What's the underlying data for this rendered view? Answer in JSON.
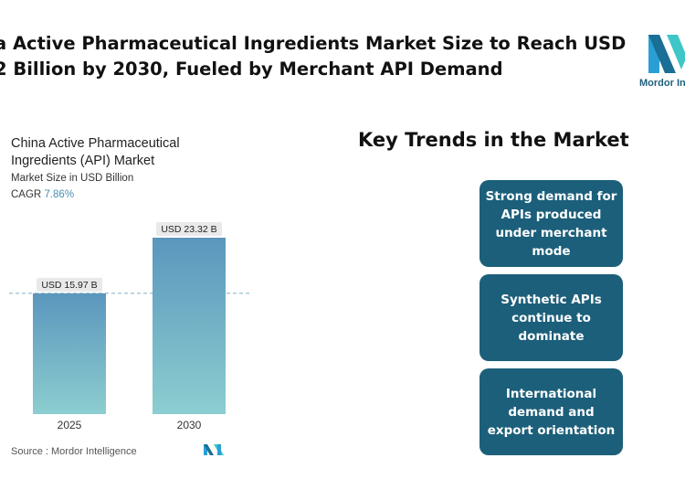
{
  "headline": {
    "line1": "a Active Pharmaceutical Ingredients Market Size to Reach USD",
    "line2": "2 Billion by 2030, Fueled by Merchant API Demand"
  },
  "logo": {
    "text": "Mordor In",
    "icon": "mordor-intelligence-logo-icon"
  },
  "chart_data": {
    "type": "bar",
    "title": "China Active Pharmaceutical Ingredients (API) Market",
    "subtitle": "Market Size in USD Billion",
    "cagr_label": "CAGR",
    "cagr_value": "7.86%",
    "categories": [
      "2025",
      "2030"
    ],
    "values": [
      15.97,
      23.32
    ],
    "data_labels": [
      "USD 15.97 B",
      "USD 23.32 B"
    ],
    "reference_line": 15.97,
    "ylim": [
      0,
      23.32
    ],
    "grid": false,
    "colors": {
      "bar_top": "#5b96bd",
      "bar_bottom": "#8cced0",
      "label_bg": "#e9e9e9",
      "dash": "#8fb7c9"
    }
  },
  "source": "Source :  Mordor Intelligence",
  "trends": {
    "title": "Key Trends in the Market",
    "items": [
      "Strong demand for APIs produced under merchant mode",
      "Synthetic APIs continue to dominate",
      "International demand and export orientation"
    ],
    "color": "#1c5f7a"
  }
}
